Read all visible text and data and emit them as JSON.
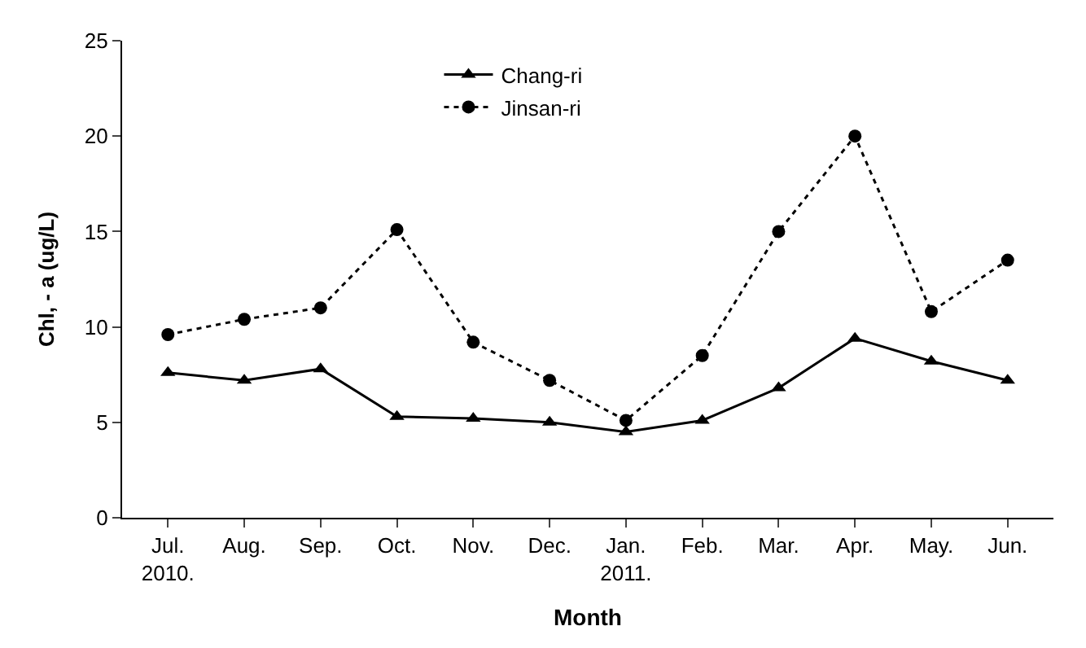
{
  "chart_data": {
    "type": "line",
    "xlabel": "Month",
    "ylabel": "Chl, - a (ug/L)",
    "categories": [
      "Jul.\n2010.",
      "Aug.",
      "Sep.",
      "Oct.",
      "Nov.",
      "Dec.",
      "Jan.\n2011.",
      "Feb.",
      "Mar.",
      "Apr.",
      "May.",
      "Jun."
    ],
    "series": [
      {
        "name": "Chang-ri",
        "color": "#000000",
        "marker": "triangle",
        "line_style": "solid",
        "values": [
          7.6,
          7.2,
          7.8,
          5.3,
          5.2,
          5.0,
          4.5,
          5.1,
          6.8,
          9.4,
          8.2,
          7.2
        ]
      },
      {
        "name": "Jinsan-ri",
        "color": "#000000",
        "marker": "circle",
        "line_style": "dotted",
        "values": [
          9.6,
          10.4,
          11.0,
          15.1,
          9.2,
          7.2,
          5.1,
          8.5,
          15.0,
          20.0,
          10.8,
          13.5
        ]
      }
    ],
    "ylim": [
      0,
      25
    ],
    "yticks": [
      0,
      5,
      10,
      15,
      20,
      25
    ],
    "grid": false,
    "legend": "top"
  }
}
